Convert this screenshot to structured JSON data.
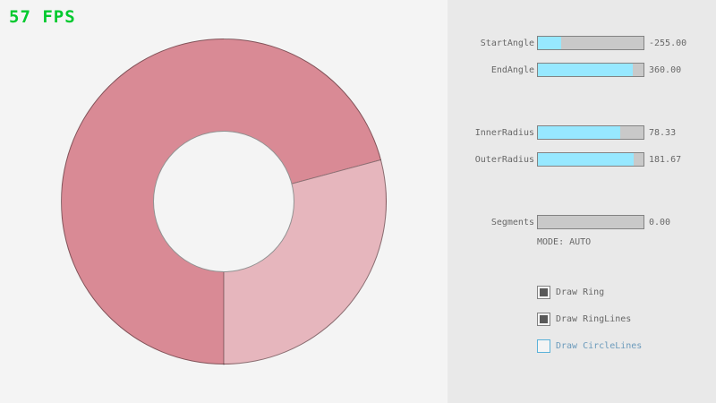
{
  "fps": "57 FPS",
  "panel": {
    "sliders": [
      {
        "label": "StartAngle",
        "value": "-255.00",
        "fill": 0.217
      },
      {
        "label": "EndAngle",
        "value": "360.00",
        "fill": 0.9
      },
      {
        "label": "InnerRadius",
        "value": "78.33",
        "fill": 0.783
      },
      {
        "label": "OuterRadius",
        "value": "181.67",
        "fill": 0.908
      },
      {
        "label": "Segments",
        "value": "0.00",
        "fill": 0.0
      }
    ],
    "mode_text": "MODE: AUTO",
    "checkboxes": [
      {
        "label": "Draw Ring",
        "checked": true,
        "accent": false
      },
      {
        "label": "Draw RingLines",
        "checked": true,
        "accent": false
      },
      {
        "label": "Draw CircleLines",
        "checked": false,
        "accent": true
      }
    ]
  },
  "colors": {
    "stage_bg": "#f4f4f4",
    "panel_bg": "#e9e9e9",
    "fps_green": "#00c92e",
    "ring_dark": "#d98a95",
    "ring_light": "#e6b6bd",
    "ring_line": "#00000066",
    "slider_track": "#c9c9c9",
    "slider_fill": "#97e8ff",
    "control_border": "#838383",
    "text": "#686868",
    "check_mark": "#595959",
    "accent_border": "#5bb2d9",
    "accent_text": "#6c9bbc"
  }
}
